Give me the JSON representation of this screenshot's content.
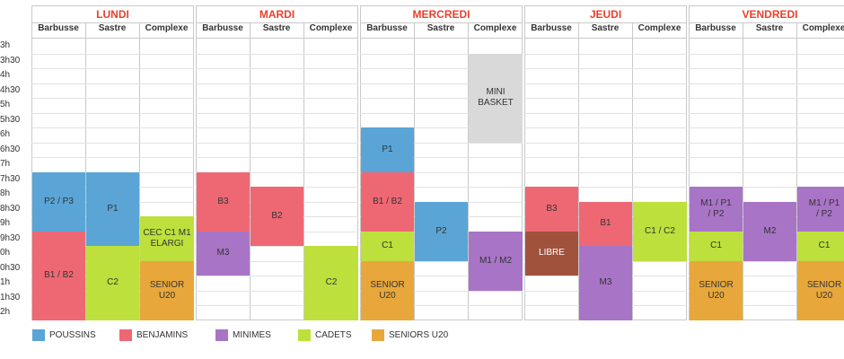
{
  "times": [
    "3h",
    "3h30",
    "4h",
    "4h30",
    "5h",
    "5h30",
    "6h",
    "6h30",
    "7h",
    "7h30",
    "8h",
    "8h30",
    "9h",
    "9h30",
    "0h",
    "0h30",
    "1h",
    "1h30",
    "2h"
  ],
  "days": [
    {
      "name": "LUNDI",
      "venues": [
        "Barbusse",
        "Sastre",
        "Complexe"
      ]
    },
    {
      "name": "MARDI",
      "venues": [
        "Barbusse",
        "Sastre",
        "Complexe"
      ]
    },
    {
      "name": "MERCREDI",
      "venues": [
        "Barbusse",
        "Sastre",
        "Complexe"
      ]
    },
    {
      "name": "JEUDI",
      "venues": [
        "Barbusse",
        "Sastre",
        "Complexe"
      ]
    },
    {
      "name": "VENDREDI",
      "venues": [
        "Barbusse",
        "Sastre",
        "Complexe"
      ]
    }
  ],
  "colors": {
    "poussins": "#5aa5d6",
    "benjamins": "#ee6874",
    "minimes": "#a874c6",
    "cadets": "#bde03c",
    "seniors": "#e8a73a",
    "mini": "#d9d9d9",
    "libre": "#a0523d"
  },
  "blocks": [
    {
      "day": 0,
      "col": 0,
      "start": 9,
      "end": 13,
      "label": "P2 / P3",
      "group": "poussins"
    },
    {
      "day": 0,
      "col": 0,
      "start": 13,
      "end": 19,
      "label": "B1 / B2",
      "group": "benjamins"
    },
    {
      "day": 0,
      "col": 1,
      "start": 9,
      "end": 14,
      "label": "P1",
      "group": "poussins"
    },
    {
      "day": 0,
      "col": 1,
      "start": 14,
      "end": 19,
      "label": "C2",
      "group": "cadets"
    },
    {
      "day": 0,
      "col": 2,
      "start": 12,
      "end": 15,
      "label": "CEC C1 M1\nELARGI",
      "group": "cadets"
    },
    {
      "day": 0,
      "col": 2,
      "start": 15,
      "end": 19,
      "label": "SENIOR\nU20",
      "group": "seniors"
    },
    {
      "day": 1,
      "col": 0,
      "start": 9,
      "end": 13,
      "label": "B3",
      "group": "benjamins"
    },
    {
      "day": 1,
      "col": 0,
      "start": 13,
      "end": 16,
      "label": "M3",
      "group": "minimes"
    },
    {
      "day": 1,
      "col": 1,
      "start": 10,
      "end": 14,
      "label": "B2",
      "group": "benjamins"
    },
    {
      "day": 1,
      "col": 2,
      "start": 14,
      "end": 19,
      "label": "C2",
      "group": "cadets"
    },
    {
      "day": 2,
      "col": 0,
      "start": 6,
      "end": 9,
      "label": "P1",
      "group": "poussins"
    },
    {
      "day": 2,
      "col": 0,
      "start": 9,
      "end": 13,
      "label": "B1 / B2",
      "group": "benjamins"
    },
    {
      "day": 2,
      "col": 0,
      "start": 13,
      "end": 15,
      "label": "C1",
      "group": "cadets"
    },
    {
      "day": 2,
      "col": 0,
      "start": 15,
      "end": 19,
      "label": "SENIOR\nU20",
      "group": "seniors"
    },
    {
      "day": 2,
      "col": 1,
      "start": 11,
      "end": 15,
      "label": "P2",
      "group": "poussins"
    },
    {
      "day": 2,
      "col": 2,
      "start": 1,
      "end": 7,
      "label": "MINI\nBASKET",
      "group": "mini"
    },
    {
      "day": 2,
      "col": 2,
      "start": 13,
      "end": 17,
      "label": "M1 / M2",
      "group": "minimes"
    },
    {
      "day": 3,
      "col": 0,
      "start": 10,
      "end": 13,
      "label": "B3",
      "group": "benjamins"
    },
    {
      "day": 3,
      "col": 0,
      "start": 13,
      "end": 16,
      "label": "LIBRE",
      "group": "libre"
    },
    {
      "day": 3,
      "col": 1,
      "start": 11,
      "end": 14,
      "label": "B1",
      "group": "benjamins"
    },
    {
      "day": 3,
      "col": 1,
      "start": 14,
      "end": 19,
      "label": "M3",
      "group": "minimes"
    },
    {
      "day": 3,
      "col": 2,
      "start": 11,
      "end": 15,
      "label": "C1 / C2",
      "group": "cadets"
    },
    {
      "day": 4,
      "col": 0,
      "start": 10,
      "end": 13,
      "label": "M1 / P1\n/ P2",
      "group": "minimes"
    },
    {
      "day": 4,
      "col": 0,
      "start": 13,
      "end": 15,
      "label": "C1",
      "group": "cadets"
    },
    {
      "day": 4,
      "col": 0,
      "start": 15,
      "end": 19,
      "label": "SENIOR\nU20",
      "group": "seniors"
    },
    {
      "day": 4,
      "col": 1,
      "start": 11,
      "end": 15,
      "label": "M2",
      "group": "minimes"
    },
    {
      "day": 4,
      "col": 2,
      "start": 10,
      "end": 13,
      "label": "M1 / P1\n/ P2",
      "group": "minimes"
    },
    {
      "day": 4,
      "col": 2,
      "start": 13,
      "end": 15,
      "label": "C1",
      "group": "cadets"
    },
    {
      "day": 4,
      "col": 2,
      "start": 15,
      "end": 19,
      "label": "SENIOR\nU20",
      "group": "seniors"
    }
  ],
  "legend": [
    {
      "label": "POUSSINS",
      "group": "poussins"
    },
    {
      "label": "BENJAMINS",
      "group": "benjamins"
    },
    {
      "label": "MINIMES",
      "group": "minimes"
    },
    {
      "label": "CADETS",
      "group": "cadets"
    },
    {
      "label": "SENIORS U20",
      "group": "seniors"
    }
  ]
}
